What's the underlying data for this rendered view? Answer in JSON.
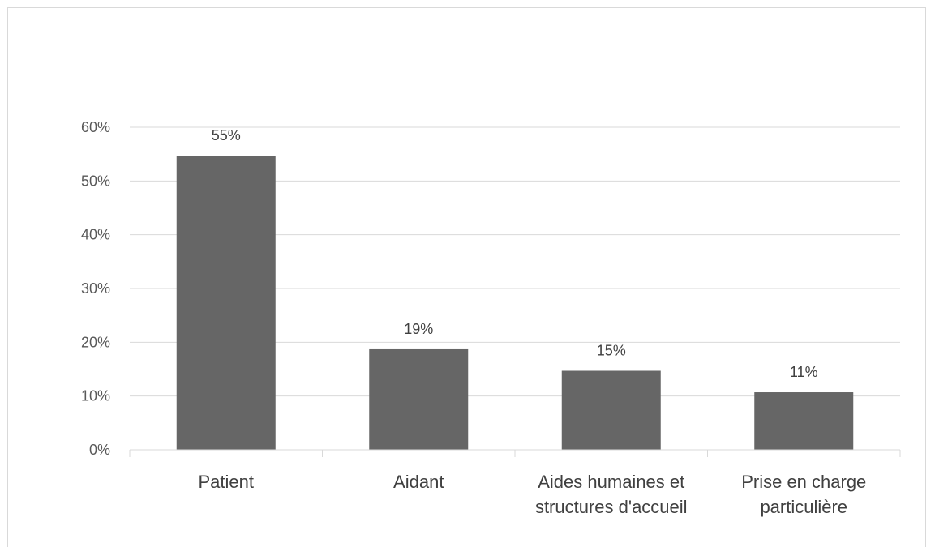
{
  "chart_data": {
    "type": "bar",
    "categories": [
      [
        "Patient"
      ],
      [
        "Aidant"
      ],
      [
        "Aides humaines et",
        "structures d'accueil"
      ],
      [
        "Prise en charge",
        "particulière"
      ]
    ],
    "values": [
      55,
      19,
      15,
      11
    ],
    "bar_heights": [
      54.7,
      18.7,
      14.7,
      10.7
    ],
    "data_labels": [
      "55%",
      "19%",
      "15%",
      "11%"
    ],
    "y_ticks": [
      "0%",
      "10%",
      "20%",
      "30%",
      "40%",
      "50%",
      "60%"
    ],
    "ylim": [
      0,
      60
    ],
    "grid": true,
    "colors": {
      "bar": "#666666"
    }
  }
}
